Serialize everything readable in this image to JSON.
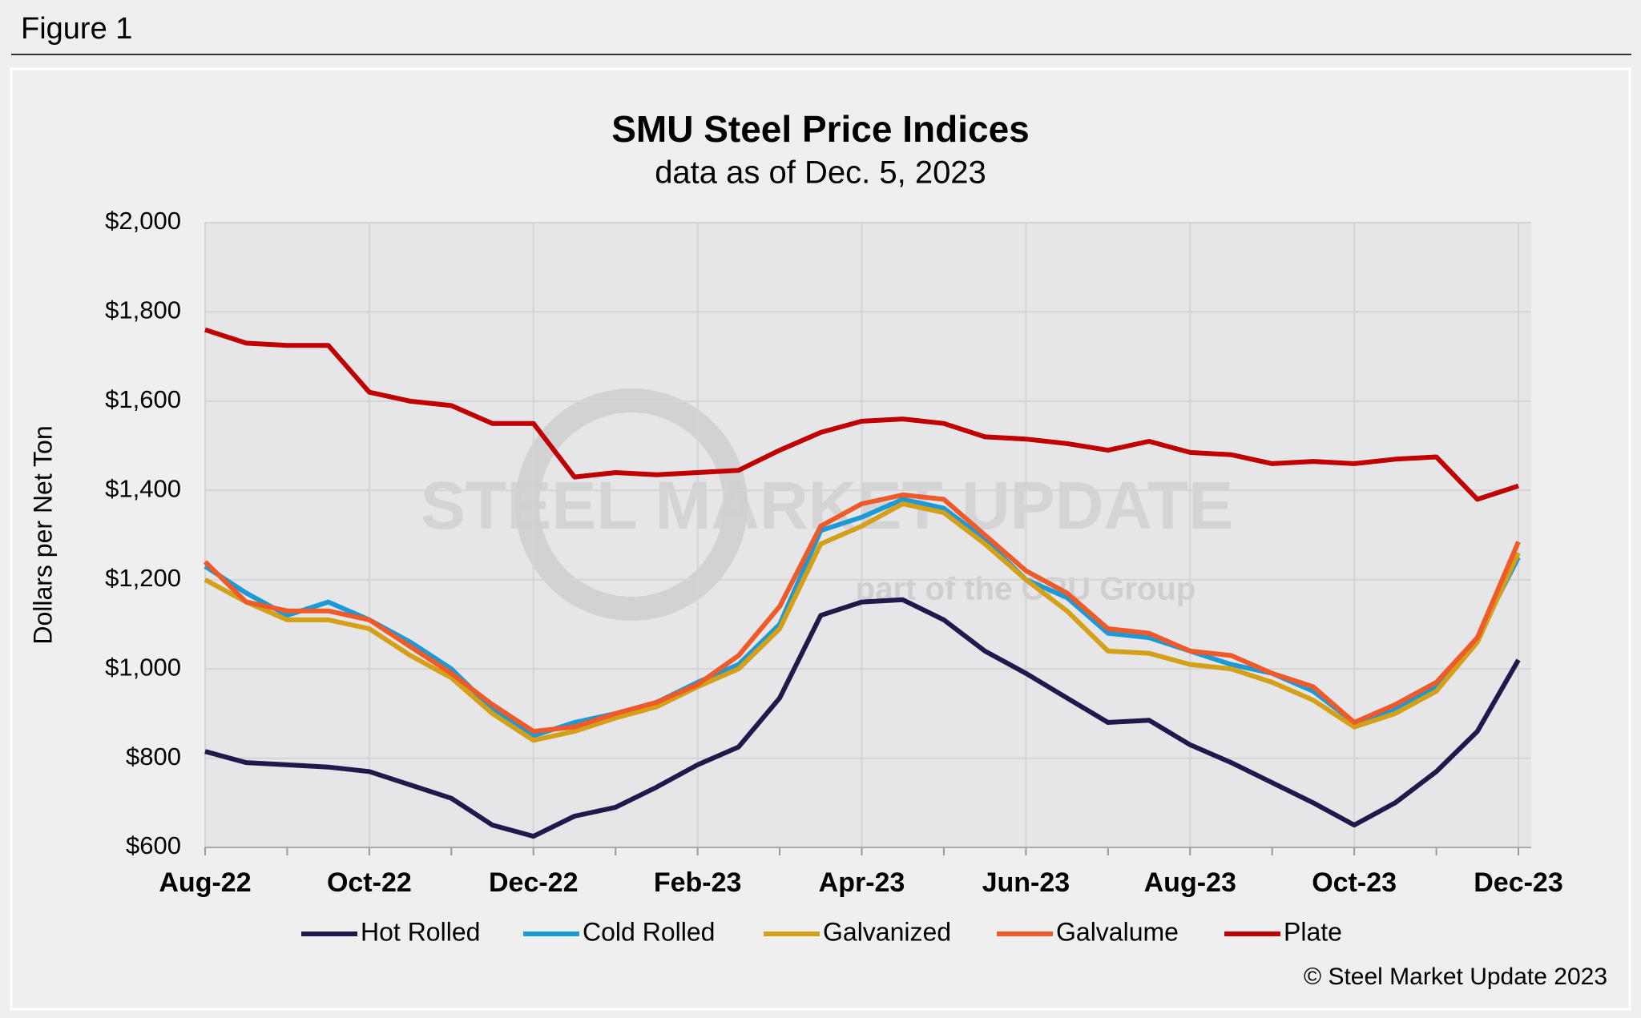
{
  "header": "Figure 1",
  "chart_data": {
    "type": "line",
    "title": "SMU Steel Price Indices",
    "subtitle": "data as of Dec. 5, 2023",
    "y_label": "Dollars per Net Ton",
    "watermark": [
      "STEEL MARKET UPDATE",
      "part of the CRU Group"
    ],
    "copyright": "© Steel Market Update 2023",
    "categories": [
      "Aug-22",
      null,
      null,
      null,
      "Oct-22",
      null,
      null,
      null,
      "Dec-22",
      null,
      null,
      null,
      "Feb-23",
      null,
      null,
      null,
      "Apr-23",
      null,
      null,
      null,
      "Jun-23",
      null,
      null,
      null,
      "Aug-23",
      null,
      null,
      null,
      "Oct-23",
      null,
      null,
      null,
      "Dec-23"
    ],
    "ylim": [
      600,
      2000
    ],
    "yticks": [
      {
        "value": 600,
        "label": "$600"
      },
      {
        "value": 800,
        "label": "$800"
      },
      {
        "value": 1000,
        "label": "$1,000"
      },
      {
        "value": 1200,
        "label": "$1,200"
      },
      {
        "value": 1400,
        "label": "$1,400"
      },
      {
        "value": 1600,
        "label": "$1,600"
      },
      {
        "value": 1800,
        "label": "$1,800"
      },
      {
        "value": 2000,
        "label": "$2,000"
      }
    ],
    "grid": true,
    "series": [
      {
        "name": "Hot Rolled",
        "color": "#1f1a4b",
        "values": [
          815,
          790,
          785,
          780,
          770,
          740,
          710,
          650,
          625,
          670,
          690,
          735,
          785,
          825,
          935,
          1120,
          1150,
          1155,
          1110,
          1040,
          990,
          935,
          880,
          885,
          830,
          790,
          745,
          700,
          650,
          700,
          770,
          860,
          1020
        ]
      },
      {
        "name": "Cold Rolled",
        "color": "#1b9ad6",
        "values": [
          1230,
          1170,
          1120,
          1150,
          1110,
          1060,
          1000,
          910,
          850,
          880,
          900,
          925,
          970,
          1010,
          1100,
          1310,
          1340,
          1380,
          1360,
          1290,
          1200,
          1160,
          1080,
          1070,
          1040,
          1010,
          990,
          950,
          880,
          910,
          960,
          1070,
          1250
        ]
      },
      {
        "name": "Galvanized",
        "color": "#d4a017",
        "values": [
          1200,
          1150,
          1110,
          1110,
          1090,
          1030,
          980,
          900,
          840,
          860,
          890,
          915,
          960,
          1000,
          1090,
          1280,
          1320,
          1370,
          1350,
          1280,
          1200,
          1130,
          1040,
          1035,
          1010,
          1000,
          970,
          930,
          870,
          900,
          950,
          1060,
          1260
        ]
      },
      {
        "name": "Galvalume",
        "color": "#ee5a2a",
        "values": [
          1240,
          1150,
          1130,
          1130,
          1110,
          1050,
          990,
          920,
          860,
          870,
          900,
          925,
          965,
          1030,
          1140,
          1320,
          1370,
          1390,
          1380,
          1300,
          1220,
          1170,
          1090,
          1080,
          1040,
          1030,
          990,
          960,
          880,
          920,
          970,
          1070,
          1285
        ]
      },
      {
        "name": "Plate",
        "color": "#c00000",
        "values": [
          1760,
          1730,
          1725,
          1725,
          1620,
          1600,
          1590,
          1550,
          1550,
          1430,
          1440,
          1435,
          1440,
          1445,
          1490,
          1530,
          1555,
          1560,
          1550,
          1520,
          1515,
          1505,
          1490,
          1510,
          1485,
          1480,
          1460,
          1465,
          1460,
          1470,
          1475,
          1380,
          1410
        ]
      }
    ]
  }
}
